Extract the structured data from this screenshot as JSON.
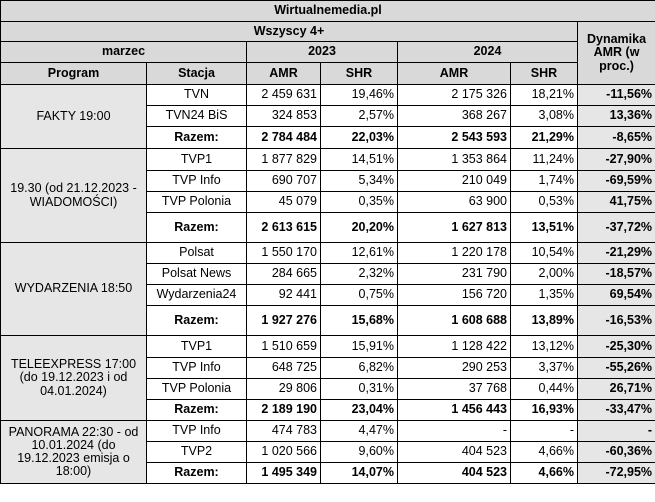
{
  "site": "Wirtualnemedia.pl",
  "audience": "Wszyscy 4+",
  "dynamics_header": "Dynamika AMR (w proc.)",
  "month": "marzec",
  "year_a": "2023",
  "year_b": "2024",
  "col_program": "Program",
  "col_station": "Stacja",
  "col_amr": "AMR",
  "col_shr": "SHR",
  "groups": [
    {
      "program": "FAKTY 19:00",
      "rows": [
        {
          "station": "TVN",
          "amr23": "2 459 631",
          "shr23": "19,46%",
          "amr24": "2 175 326",
          "shr24": "18,21%",
          "dyn": "-11,56%"
        },
        {
          "station": "TVN24 BiS",
          "amr23": "324 853",
          "shr23": "2,57%",
          "amr24": "368 267",
          "shr24": "3,08%",
          "dyn": "13,36%"
        },
        {
          "station": "Razem:",
          "amr23": "2 784 484",
          "shr23": "22,03%",
          "amr24": "2 543 593",
          "shr24": "21,29%",
          "dyn": "-8,65%"
        }
      ]
    },
    {
      "program": "19.30 (od 21.12.2023 - WIADOMOŚCI)",
      "rows": [
        {
          "station": "TVP1",
          "amr23": "1 877 829",
          "shr23": "14,51%",
          "amr24": "1 353 864",
          "shr24": "11,24%",
          "dyn": "-27,90%"
        },
        {
          "station": "TVP Info",
          "amr23": "690 707",
          "shr23": "5,34%",
          "amr24": "210 049",
          "shr24": "1,74%",
          "dyn": "-69,59%"
        },
        {
          "station": "TVP Polonia",
          "amr23": "45 079",
          "shr23": "0,35%",
          "amr24": "63 900",
          "shr24": "0,53%",
          "dyn": "41,75%"
        },
        {
          "station": "Razem:",
          "amr23": "2 613 615",
          "shr23": "20,20%",
          "amr24": "1 627 813",
          "shr24": "13,51%",
          "dyn": "-37,72%"
        }
      ]
    },
    {
      "program": "WYDARZENIA 18:50",
      "rows": [
        {
          "station": "Polsat",
          "amr23": "1 550 170",
          "shr23": "12,61%",
          "amr24": "1 220 178",
          "shr24": "10,54%",
          "dyn": "-21,29%"
        },
        {
          "station": "Polsat News",
          "amr23": "284 665",
          "shr23": "2,32%",
          "amr24": "231 790",
          "shr24": "2,00%",
          "dyn": "-18,57%"
        },
        {
          "station": "Wydarzenia24",
          "amr23": "92 441",
          "shr23": "0,75%",
          "amr24": "156 720",
          "shr24": "1,35%",
          "dyn": "69,54%"
        },
        {
          "station": "Razem:",
          "amr23": "1 927 276",
          "shr23": "15,68%",
          "amr24": "1 608 688",
          "shr24": "13,89%",
          "dyn": "-16,53%"
        }
      ]
    },
    {
      "program": "TELEEXPRESS 17:00 (do 19.12.2023 i od 04.01.2024)",
      "rows": [
        {
          "station": "TVP1",
          "amr23": "1 510 659",
          "shr23": "15,91%",
          "amr24": "1 128 422",
          "shr24": "13,12%",
          "dyn": "-25,30%"
        },
        {
          "station": "TVP Info",
          "amr23": "648 725",
          "shr23": "6,82%",
          "amr24": "290 253",
          "shr24": "3,37%",
          "dyn": "-55,26%"
        },
        {
          "station": "TVP Polonia",
          "amr23": "29 806",
          "shr23": "0,31%",
          "amr24": "37 768",
          "shr24": "0,44%",
          "dyn": "26,71%"
        },
        {
          "station": "Razem:",
          "amr23": "2 189 190",
          "shr23": "23,04%",
          "amr24": "1 456 443",
          "shr24": "16,93%",
          "dyn": "-33,47%"
        }
      ]
    },
    {
      "program": "PANORAMA 22:30 - od 10.01.2024 (do 19.12.2023 emisja o 18:00)",
      "rows": [
        {
          "station": "TVP Info",
          "amr23": "474 783",
          "shr23": "4,47%",
          "amr24": "-",
          "shr24": "-",
          "dyn": "-"
        },
        {
          "station": "TVP2",
          "amr23": "1 020 566",
          "shr23": "9,60%",
          "amr24": "404 523",
          "shr24": "4,66%",
          "dyn": "-60,36%"
        },
        {
          "station": "Razem:",
          "amr23": "1 495 349",
          "shr23": "14,07%",
          "amr24": "404 523",
          "shr24": "4,66%",
          "dyn": "-72,95%"
        }
      ]
    }
  ]
}
